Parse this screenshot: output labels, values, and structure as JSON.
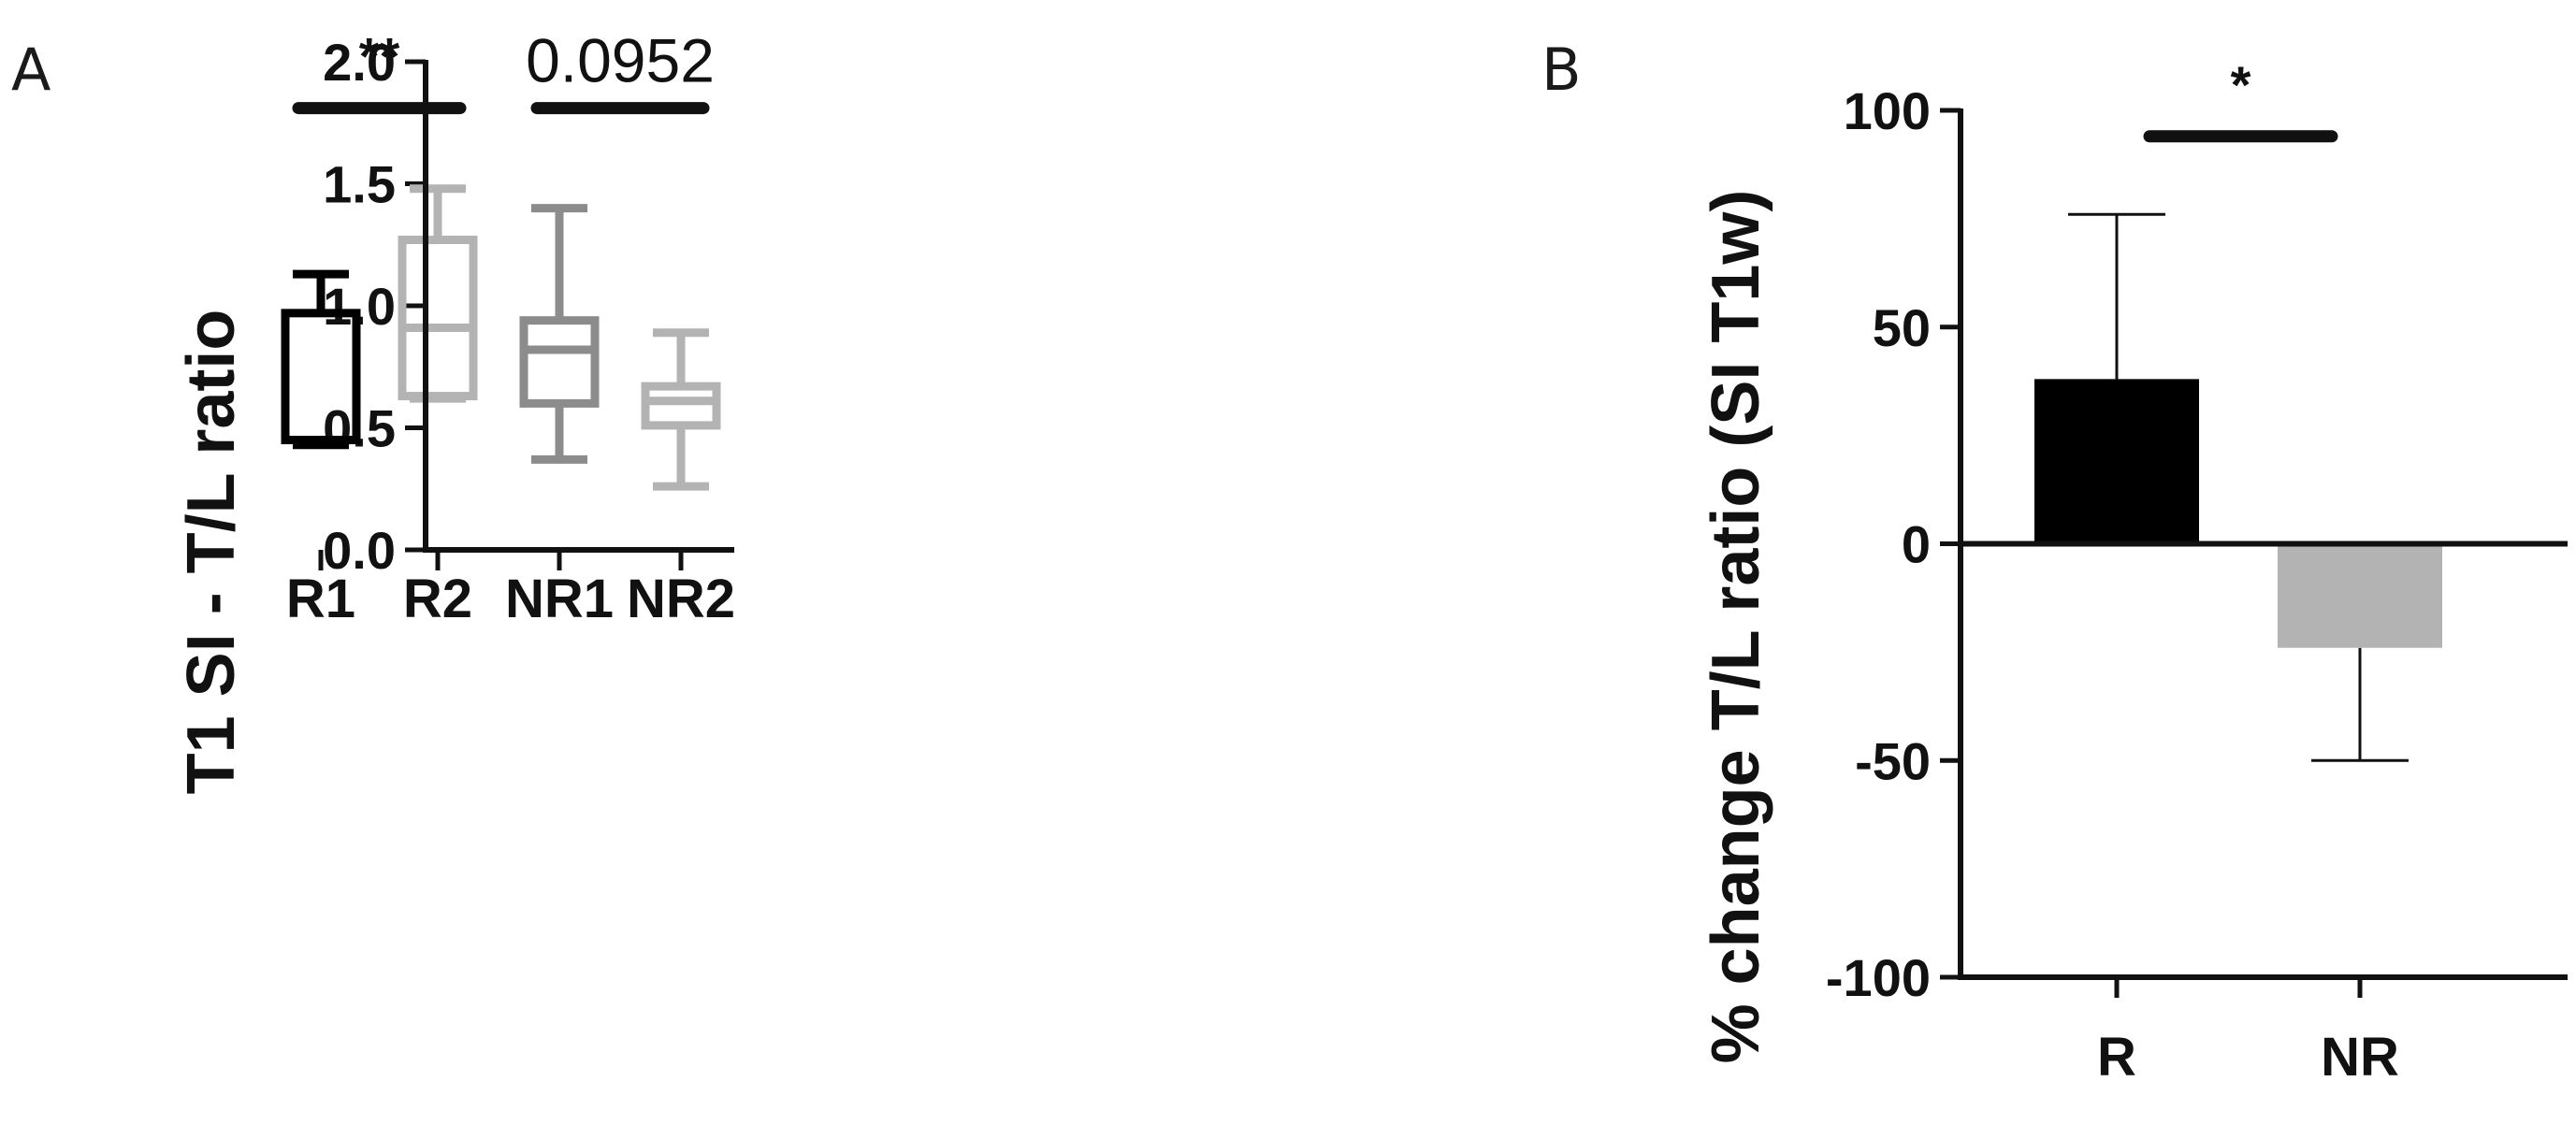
{
  "chart_data": [
    {
      "panel": "A",
      "type": "box",
      "ylabel": "T1 SI - T/L ratio",
      "ylim": [
        0,
        2.0
      ],
      "yticks": [
        "0.0",
        "0.5",
        "1.0",
        "1.5",
        "2.0"
      ],
      "categories": [
        "R1",
        "R2",
        "NR1",
        "NR2"
      ],
      "boxes": [
        {
          "name": "R1",
          "min": 0.43,
          "q1": 0.45,
          "median": 0.45,
          "q3": 0.97,
          "max": 1.13,
          "color": "#000000"
        },
        {
          "name": "R2",
          "min": 0.62,
          "q1": 0.63,
          "median": 0.91,
          "q3": 1.27,
          "max": 1.48,
          "color": "#b3b3b3"
        },
        {
          "name": "NR1",
          "min": 0.37,
          "q1": 0.6,
          "median": 0.82,
          "q3": 0.94,
          "max": 1.4,
          "color": "#8c8c8c"
        },
        {
          "name": "NR2",
          "min": 0.26,
          "q1": 0.51,
          "median": 0.61,
          "q3": 0.67,
          "max": 0.89,
          "color": "#b3b3b3"
        }
      ],
      "comparisons": [
        {
          "from": "R1",
          "to": "R2",
          "label": "**",
          "y": 1.81
        },
        {
          "from": "NR1",
          "to": "NR2",
          "label": "0.0952",
          "y": 1.81
        }
      ]
    },
    {
      "panel": "B",
      "type": "bar",
      "ylabel": "% change T/L ratio (SI T1w)",
      "ylim": [
        -100,
        100
      ],
      "yticks": [
        "-100",
        "-50",
        "0",
        "50",
        "100"
      ],
      "categories": [
        "R",
        "NR"
      ],
      "values": [
        38,
        -24
      ],
      "errors": [
        38,
        26
      ],
      "colors": [
        "#000000",
        "#b3b3b3"
      ],
      "comparisons": [
        {
          "from": "R",
          "to": "NR",
          "label": "*",
          "y": 94
        }
      ]
    }
  ]
}
